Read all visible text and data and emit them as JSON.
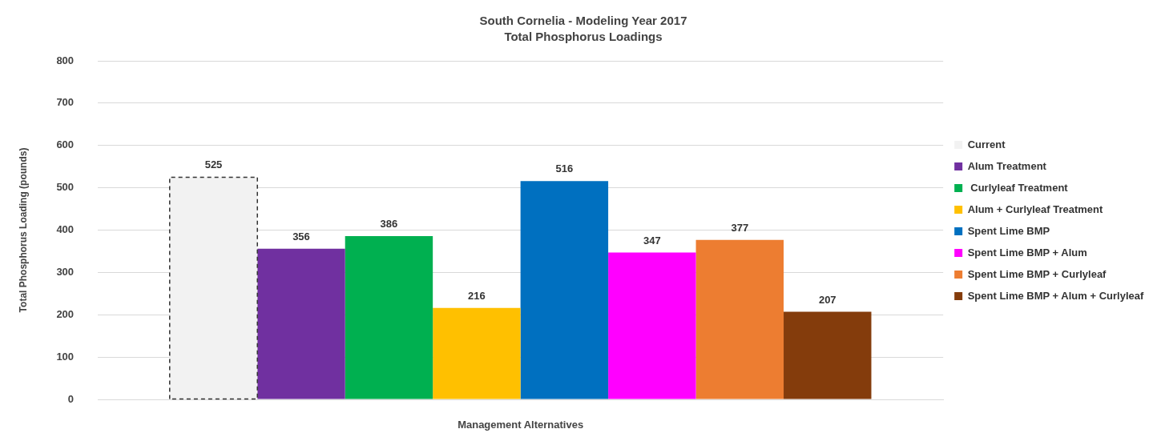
{
  "chart_data": {
    "type": "bar",
    "title": "South Cornelia - Modeling Year 2017",
    "subtitle": "Total Phosphorus Loadings",
    "xlabel": "Management Alternatives",
    "ylabel": "Total Phosphorus Loading (pounds)",
    "categories": [
      null
    ],
    "series": [
      {
        "name": "Current",
        "color": "#f2f2f2",
        "values": [
          525
        ],
        "line_style": "dashed"
      },
      {
        "name": "Alum Treatment",
        "color": "#7030a0",
        "values": [
          356
        ]
      },
      {
        "name": " Curlyleaf Treatment",
        "color": "#00b050",
        "values": [
          386
        ]
      },
      {
        "name": "Alum + Curlyleaf Treatment",
        "color": "#ffc000",
        "values": [
          216
        ]
      },
      {
        "name": "Spent Lime BMP",
        "color": "#0070c0",
        "values": [
          516
        ]
      },
      {
        "name": "Spent Lime BMP + Alum",
        "color": "#ff00ff",
        "values": [
          347
        ]
      },
      {
        "name": "Spent Lime BMP + Curlyleaf",
        "color": "#ed7d31",
        "values": [
          377
        ]
      },
      {
        "name": "Spent Lime BMP + Alum + Curlyleaf",
        "color": "#843c0c",
        "values": [
          207
        ]
      }
    ],
    "ylim": [
      0,
      800
    ],
    "yticks": [
      0,
      100,
      200,
      300,
      400,
      500,
      600,
      700,
      800
    ],
    "grid": "y",
    "legend": "right",
    "data_labels": true
  }
}
